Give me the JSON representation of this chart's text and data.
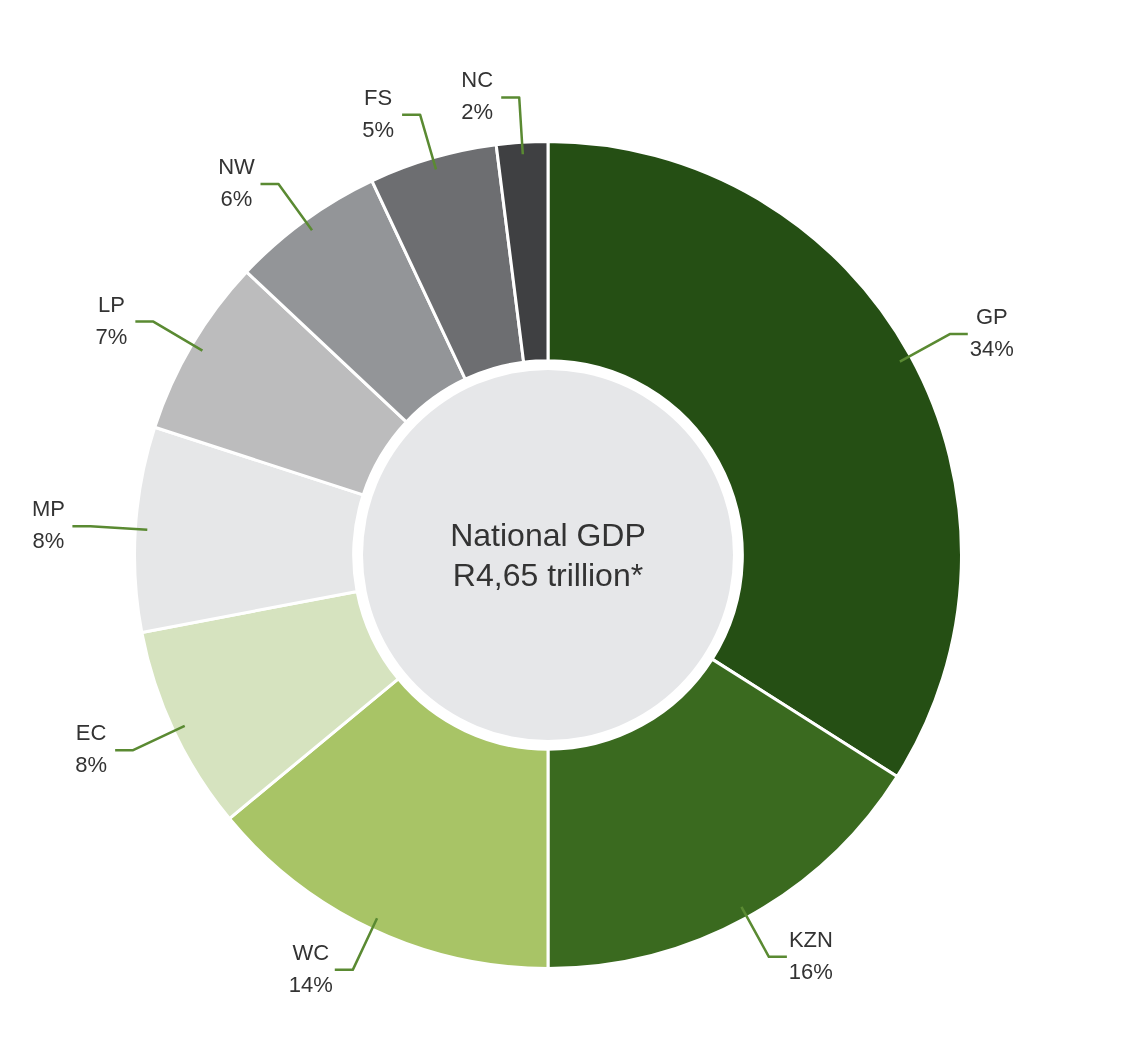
{
  "chart_data": {
    "type": "donut",
    "categories": [
      "GP",
      "KZN",
      "WC",
      "EC",
      "MP",
      "LP",
      "NW",
      "FS",
      "NC"
    ],
    "values": [
      34,
      16,
      14,
      8,
      8,
      7,
      6,
      5,
      2
    ],
    "value_labels": [
      "34%",
      "16%",
      "14%",
      "8%",
      "8%",
      "7%",
      "6%",
      "5%",
      "2%"
    ],
    "colors": [
      "#254f14",
      "#3a6a1f",
      "#a8c466",
      "#d6e3bf",
      "#e6e7e8",
      "#bcbcbd",
      "#939598",
      "#6d6e71",
      "#3f4042"
    ],
    "annotations": [
      "National GDP",
      "R4,65 trillion*"
    ]
  }
}
